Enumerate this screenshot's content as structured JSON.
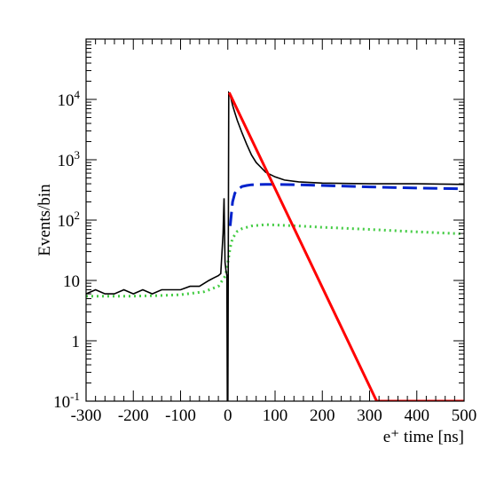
{
  "chart_data": {
    "type": "line",
    "xlabel": "e⁺ time [ns]",
    "ylabel": "Events/bin",
    "xlim": [
      -300,
      500
    ],
    "ylim": [
      0.1,
      100000
    ],
    "y_scale": "log",
    "x_ticks": [
      -300,
      -200,
      -100,
      0,
      100,
      200,
      300,
      400,
      500
    ],
    "y_ticks": [
      {
        "value": 0.1,
        "base": "10",
        "exp": "-1"
      },
      {
        "value": 1,
        "base": "1",
        "exp": ""
      },
      {
        "value": 10,
        "base": "10",
        "exp": ""
      },
      {
        "value": 100,
        "base": "10",
        "exp": "2"
      },
      {
        "value": 1000,
        "base": "10",
        "exp": "3"
      },
      {
        "value": 10000,
        "base": "10",
        "exp": "4"
      }
    ],
    "grid": false,
    "legend": "none",
    "series": [
      {
        "style": "histogram",
        "color": "#000000",
        "x": [
          -300,
          -280,
          -260,
          -240,
          -220,
          -200,
          -180,
          -160,
          -140,
          -120,
          -100,
          -80,
          -60,
          -40,
          -30,
          -20,
          -15,
          -10,
          -8,
          -6,
          -4,
          -2,
          -1,
          0,
          2,
          4,
          6,
          10,
          15,
          20,
          30,
          40,
          50,
          60,
          70,
          80,
          100,
          120,
          150,
          200,
          250,
          300,
          350,
          400,
          450,
          500
        ],
        "y": [
          6,
          7,
          6,
          6,
          7,
          6,
          7,
          6,
          7,
          7,
          7,
          8,
          8,
          10,
          11,
          12,
          13,
          60,
          230,
          20,
          15,
          12,
          0.1,
          0.1,
          13000,
          12500,
          11000,
          8000,
          6000,
          4500,
          2800,
          1800,
          1200,
          900,
          750,
          620,
          520,
          460,
          430,
          410,
          405,
          400,
          400,
          400,
          395,
          390
        ]
      },
      {
        "style": "solid",
        "color": "#ff0000",
        "x": [
          3,
          315,
          500
        ],
        "y": [
          13000,
          0.1,
          0.1
        ]
      },
      {
        "style": "dashed",
        "color": "#0022cc",
        "x": [
          5,
          10,
          15,
          20,
          30,
          40,
          50,
          60,
          80,
          100,
          150,
          200,
          300,
          400,
          500
        ],
        "y": [
          80,
          200,
          280,
          320,
          360,
          375,
          385,
          388,
          390,
          390,
          385,
          375,
          355,
          340,
          330
        ]
      },
      {
        "style": "dotted",
        "color": "#44cc44",
        "x": [
          -300,
          -250,
          -200,
          -150,
          -100,
          -50,
          -20,
          -5,
          0,
          5,
          10,
          20,
          30,
          50,
          80,
          100,
          150,
          200,
          300,
          400,
          500
        ],
        "y": [
          5.5,
          5.5,
          5.5,
          5.6,
          5.8,
          6.5,
          8,
          12,
          20,
          35,
          50,
          65,
          72,
          80,
          84,
          83,
          80,
          76,
          70,
          64,
          59
        ]
      }
    ]
  }
}
